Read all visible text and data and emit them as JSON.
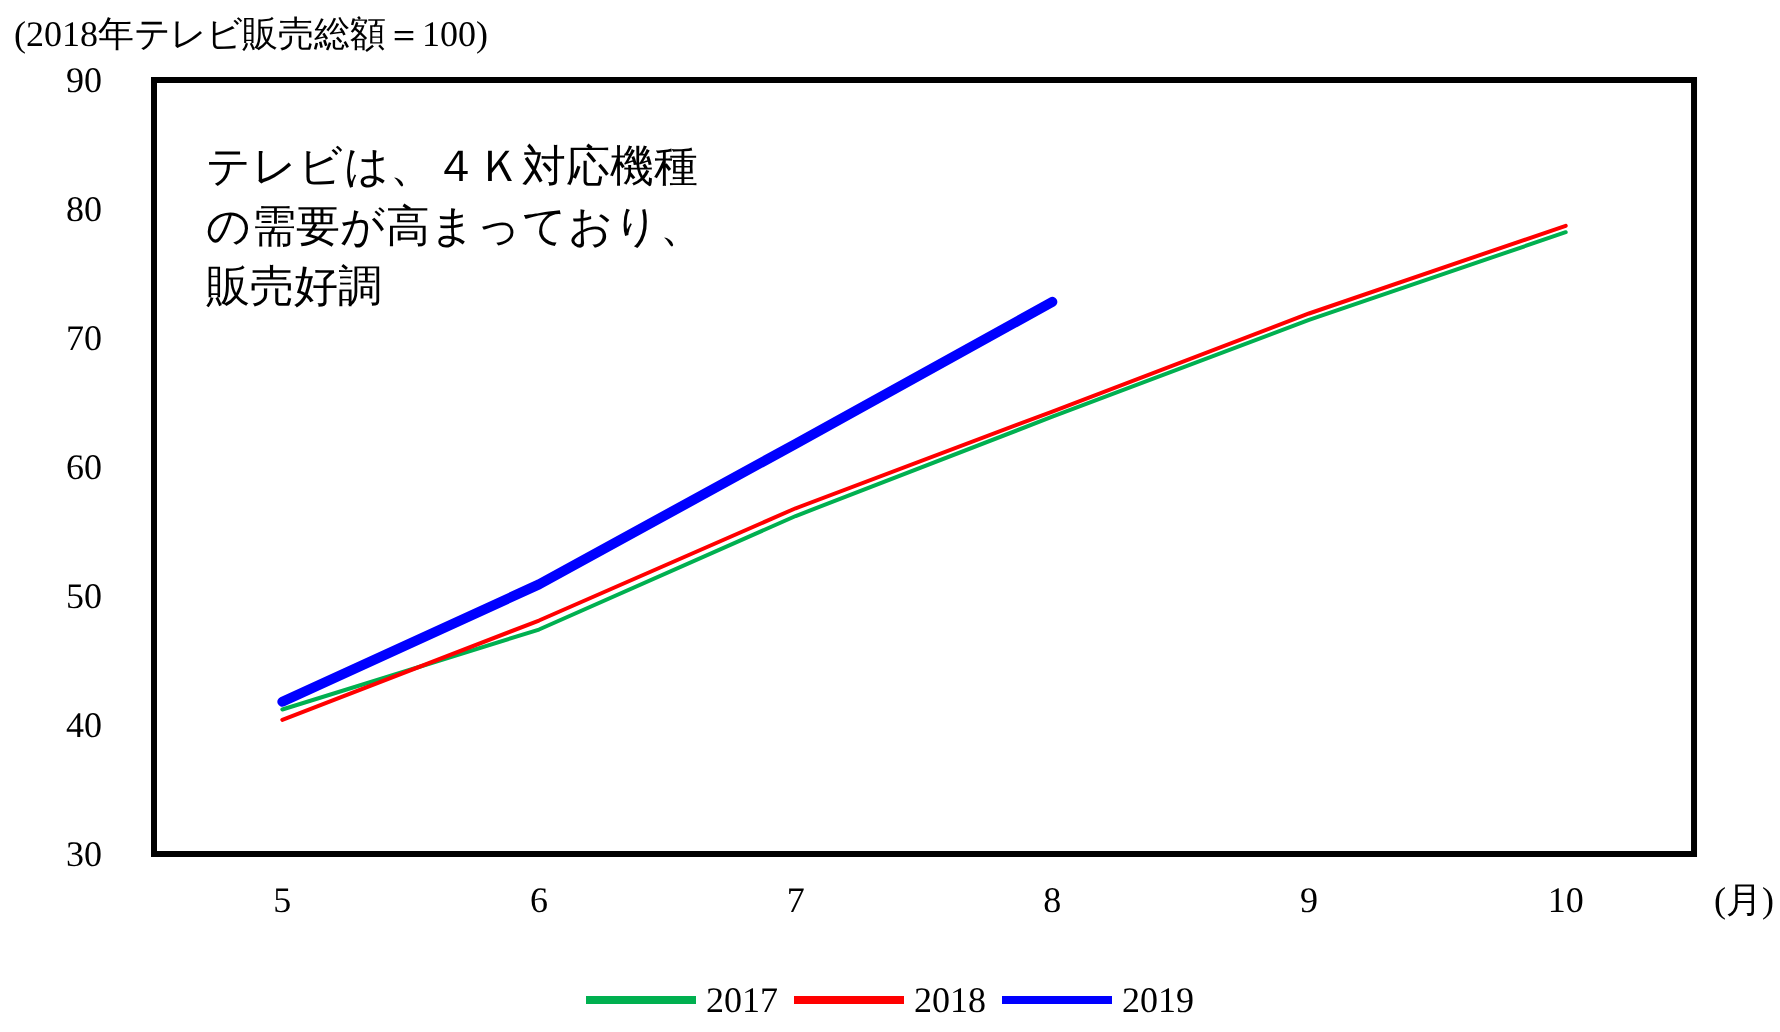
{
  "chart_data": {
    "type": "line",
    "ylabel": "(2018年テレビ販売総額＝100)",
    "xlabel": "(月)",
    "categories": [
      "5",
      "6",
      "7",
      "8",
      "9",
      "10"
    ],
    "series": [
      {
        "name": "2017",
        "color": "#00b050",
        "values": [
          41.2,
          47.4,
          56.2,
          63.9,
          71.4,
          78.2
        ]
      },
      {
        "name": "2018",
        "color": "#ff0000",
        "values": [
          40.4,
          48.1,
          56.8,
          64.3,
          71.9,
          78.7
        ]
      },
      {
        "name": "2019",
        "color": "#0000ff",
        "values": [
          41.8,
          50.9,
          61.8,
          72.8,
          null,
          null
        ]
      }
    ],
    "ylim": [
      30,
      90
    ],
    "yticks": [
      30,
      40,
      50,
      60,
      70,
      80,
      90
    ],
    "grid": false,
    "legend": "bottom",
    "marker": "none",
    "line_style": "solid",
    "annotations": [
      "テレビは、４Ｋ対応機種の需要が高まっており、販売好調"
    ]
  }
}
